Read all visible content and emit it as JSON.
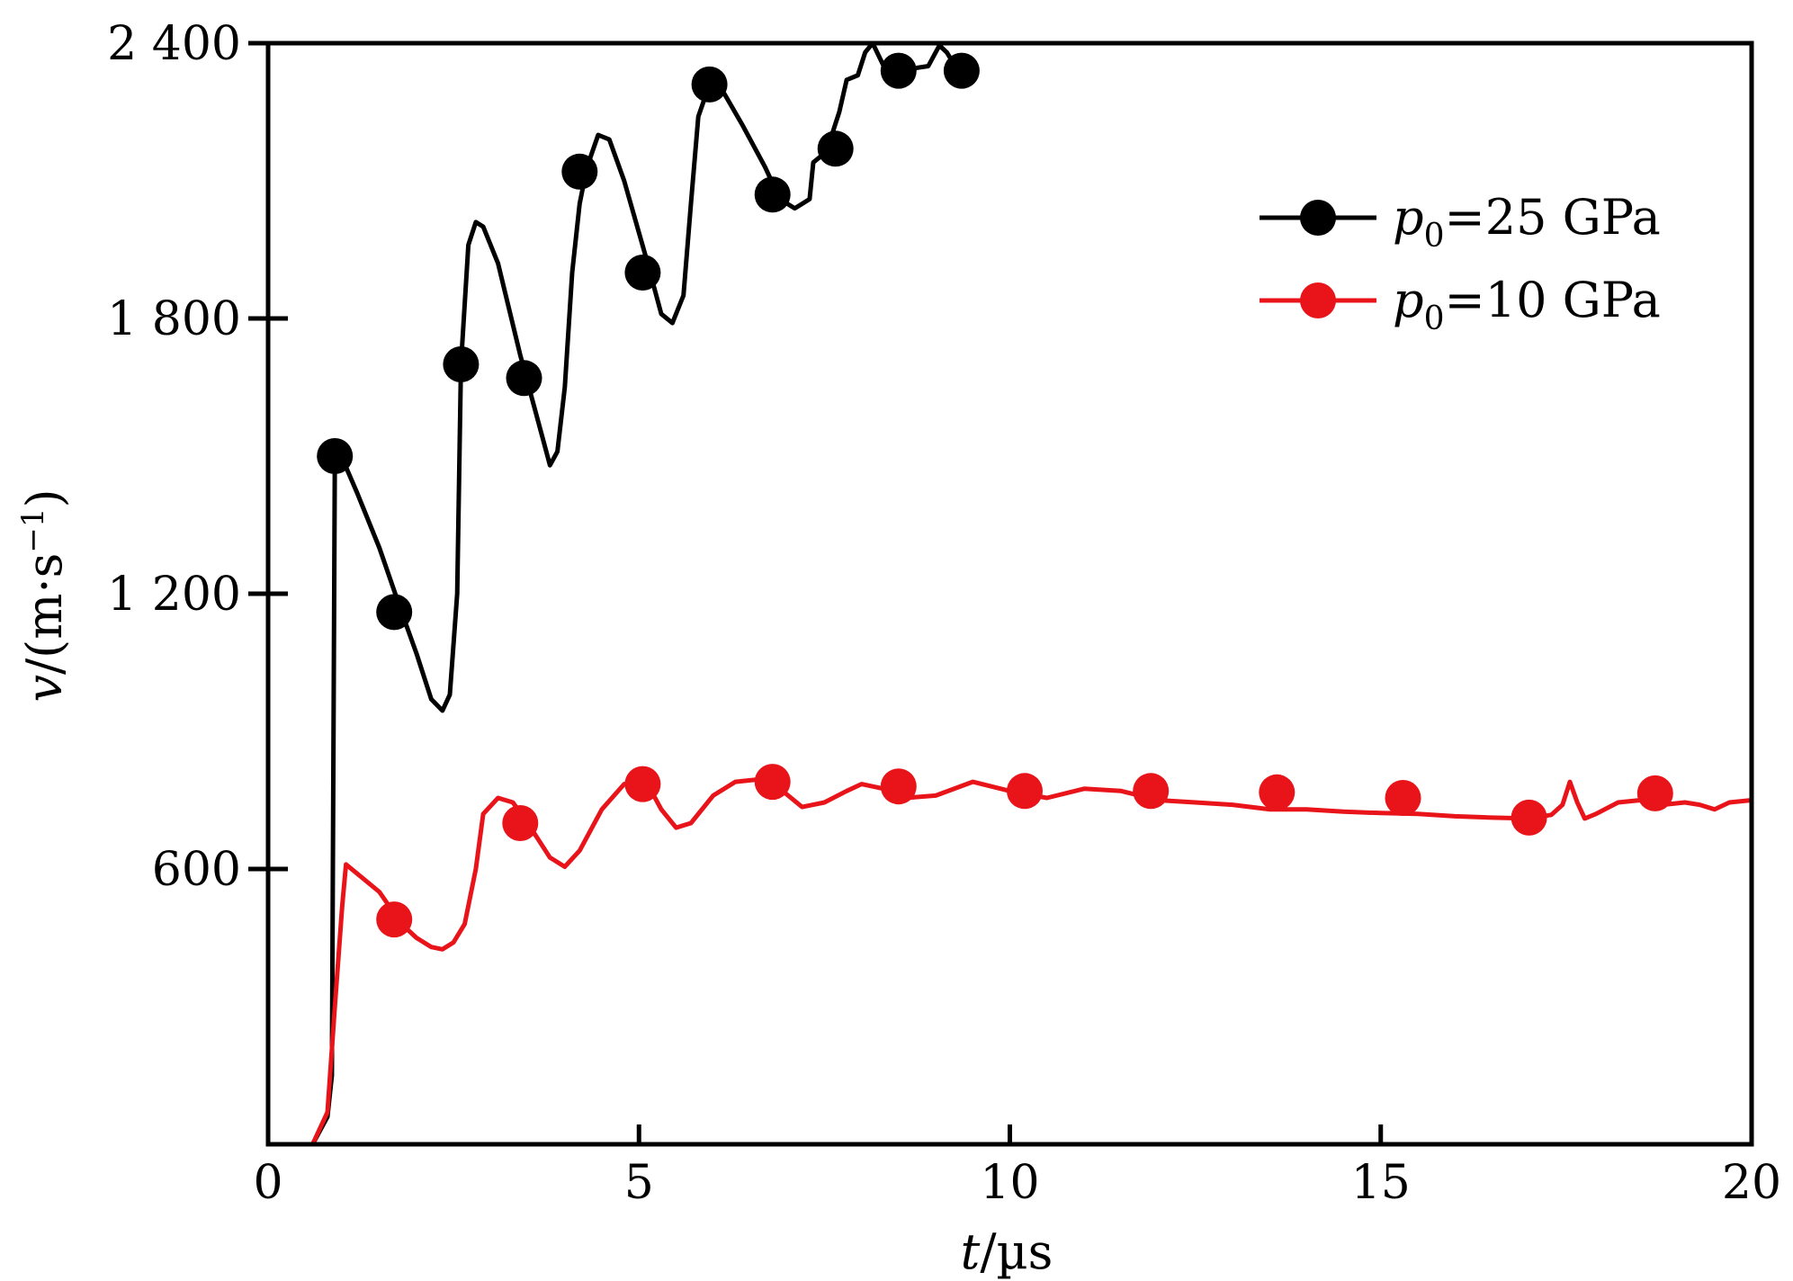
{
  "chart_data": {
    "type": "line",
    "xlabel": {
      "italic": "t",
      "rest": "/µs"
    },
    "ylabel": {
      "italic": "v",
      "rest": "/(m·s",
      "sup": "−1",
      "close": ")"
    },
    "xlim": [
      0,
      20
    ],
    "ylim": [
      0,
      2400
    ],
    "x_ticks": [
      0,
      5,
      10,
      15,
      20
    ],
    "x_tick_labels": [
      "0",
      "5",
      "10",
      "15",
      "20"
    ],
    "y_ticks": [
      600,
      1200,
      1800,
      2400
    ],
    "y_tick_labels": [
      "600",
      "1 200",
      "1 800",
      "2 400"
    ],
    "grid": false,
    "legend_position": "top-right",
    "series": [
      {
        "name": "p0=25 GPa",
        "name_parts": {
          "italic": "p",
          "sub": "0",
          "rest": "=25 GPa"
        },
        "color": "#000000",
        "points": [
          [
            0.6,
            0
          ],
          [
            0.8,
            60
          ],
          [
            0.86,
            150
          ],
          [
            0.9,
            1500
          ],
          [
            1.0,
            1495
          ],
          [
            1.2,
            1420
          ],
          [
            1.5,
            1300
          ],
          [
            1.8,
            1160
          ],
          [
            2.0,
            1070
          ],
          [
            2.2,
            970
          ],
          [
            2.35,
            945
          ],
          [
            2.45,
            980
          ],
          [
            2.55,
            1200
          ],
          [
            2.6,
            1700
          ],
          [
            2.7,
            1960
          ],
          [
            2.8,
            2010
          ],
          [
            2.9,
            2000
          ],
          [
            3.1,
            1920
          ],
          [
            3.4,
            1720
          ],
          [
            3.7,
            1540
          ],
          [
            3.8,
            1480
          ],
          [
            3.9,
            1510
          ],
          [
            4.0,
            1650
          ],
          [
            4.1,
            1900
          ],
          [
            4.2,
            2050
          ],
          [
            4.3,
            2130
          ],
          [
            4.45,
            2200
          ],
          [
            4.6,
            2190
          ],
          [
            4.8,
            2100
          ],
          [
            5.1,
            1930
          ],
          [
            5.3,
            1810
          ],
          [
            5.45,
            1790
          ],
          [
            5.6,
            1850
          ],
          [
            5.7,
            2050
          ],
          [
            5.8,
            2240
          ],
          [
            5.95,
            2310
          ],
          [
            6.15,
            2290
          ],
          [
            6.4,
            2220
          ],
          [
            6.7,
            2130
          ],
          [
            6.9,
            2060
          ],
          [
            7.1,
            2040
          ],
          [
            7.3,
            2060
          ],
          [
            7.35,
            2140
          ],
          [
            7.5,
            2160
          ],
          [
            7.6,
            2200
          ],
          [
            7.7,
            2250
          ],
          [
            7.8,
            2320
          ],
          [
            7.95,
            2330
          ],
          [
            8.05,
            2380
          ],
          [
            8.15,
            2400
          ],
          [
            8.3,
            2350
          ],
          [
            8.5,
            2340
          ],
          [
            8.7,
            2345
          ],
          [
            8.9,
            2350
          ],
          [
            9.05,
            2395
          ],
          [
            9.15,
            2380
          ],
          [
            9.3,
            2340
          ]
        ]
      },
      {
        "name": "p0=10 GPa",
        "name_parts": {
          "italic": "p",
          "sub": "0",
          "rest": "=10 GPa"
        },
        "color": "#e8141a",
        "points": [
          [
            0.6,
            0
          ],
          [
            0.8,
            70
          ],
          [
            0.9,
            300
          ],
          [
            1.0,
            520
          ],
          [
            1.05,
            610
          ],
          [
            1.2,
            590
          ],
          [
            1.5,
            550
          ],
          [
            1.8,
            480
          ],
          [
            2.0,
            450
          ],
          [
            2.2,
            430
          ],
          [
            2.35,
            425
          ],
          [
            2.5,
            440
          ],
          [
            2.65,
            480
          ],
          [
            2.8,
            600
          ],
          [
            2.9,
            720
          ],
          [
            3.1,
            755
          ],
          [
            3.3,
            745
          ],
          [
            3.5,
            700
          ],
          [
            3.8,
            625
          ],
          [
            4.0,
            605
          ],
          [
            4.2,
            640
          ],
          [
            4.5,
            730
          ],
          [
            4.8,
            785
          ],
          [
            5.1,
            790
          ],
          [
            5.3,
            730
          ],
          [
            5.5,
            690
          ],
          [
            5.7,
            700
          ],
          [
            6.0,
            760
          ],
          [
            6.3,
            790
          ],
          [
            6.6,
            795
          ],
          [
            6.9,
            775
          ],
          [
            7.2,
            735
          ],
          [
            7.5,
            745
          ],
          [
            7.8,
            770
          ],
          [
            8.0,
            785
          ],
          [
            8.3,
            775
          ],
          [
            8.6,
            755
          ],
          [
            9.0,
            760
          ],
          [
            9.5,
            790
          ],
          [
            10.0,
            770
          ],
          [
            10.5,
            755
          ],
          [
            11.0,
            775
          ],
          [
            11.5,
            770
          ],
          [
            12.0,
            750
          ],
          [
            12.5,
            745
          ],
          [
            13.0,
            740
          ],
          [
            13.5,
            730
          ],
          [
            14.0,
            730
          ],
          [
            14.5,
            725
          ],
          [
            15.0,
            722
          ],
          [
            15.5,
            720
          ],
          [
            16.0,
            715
          ],
          [
            16.5,
            712
          ],
          [
            17.0,
            710
          ],
          [
            17.3,
            718
          ],
          [
            17.45,
            740
          ],
          [
            17.55,
            790
          ],
          [
            17.65,
            745
          ],
          [
            17.75,
            710
          ],
          [
            17.9,
            720
          ],
          [
            18.2,
            745
          ],
          [
            18.5,
            750
          ],
          [
            18.8,
            740
          ],
          [
            19.1,
            745
          ],
          [
            19.3,
            740
          ],
          [
            19.5,
            730
          ],
          [
            19.7,
            745
          ],
          [
            20.0,
            750
          ]
        ]
      }
    ],
    "markers": {
      "p0=25 GPa": [
        [
          0.9,
          1500
        ],
        [
          1.7,
          1160
        ],
        [
          2.6,
          1700
        ],
        [
          3.45,
          1670
        ],
        [
          4.2,
          2120
        ],
        [
          5.05,
          1900
        ],
        [
          5.95,
          2310
        ],
        [
          6.8,
          2070
        ],
        [
          7.65,
          2170
        ],
        [
          8.5,
          2340
        ],
        [
          9.35,
          2340
        ]
      ],
      "p0=10 GPa": [
        [
          1.7,
          490
        ],
        [
          3.4,
          700
        ],
        [
          5.05,
          785
        ],
        [
          6.8,
          790
        ],
        [
          8.5,
          780
        ],
        [
          10.2,
          770
        ],
        [
          11.9,
          770
        ],
        [
          13.6,
          767
        ],
        [
          15.3,
          755
        ],
        [
          17.0,
          712
        ],
        [
          18.7,
          765
        ]
      ]
    }
  }
}
